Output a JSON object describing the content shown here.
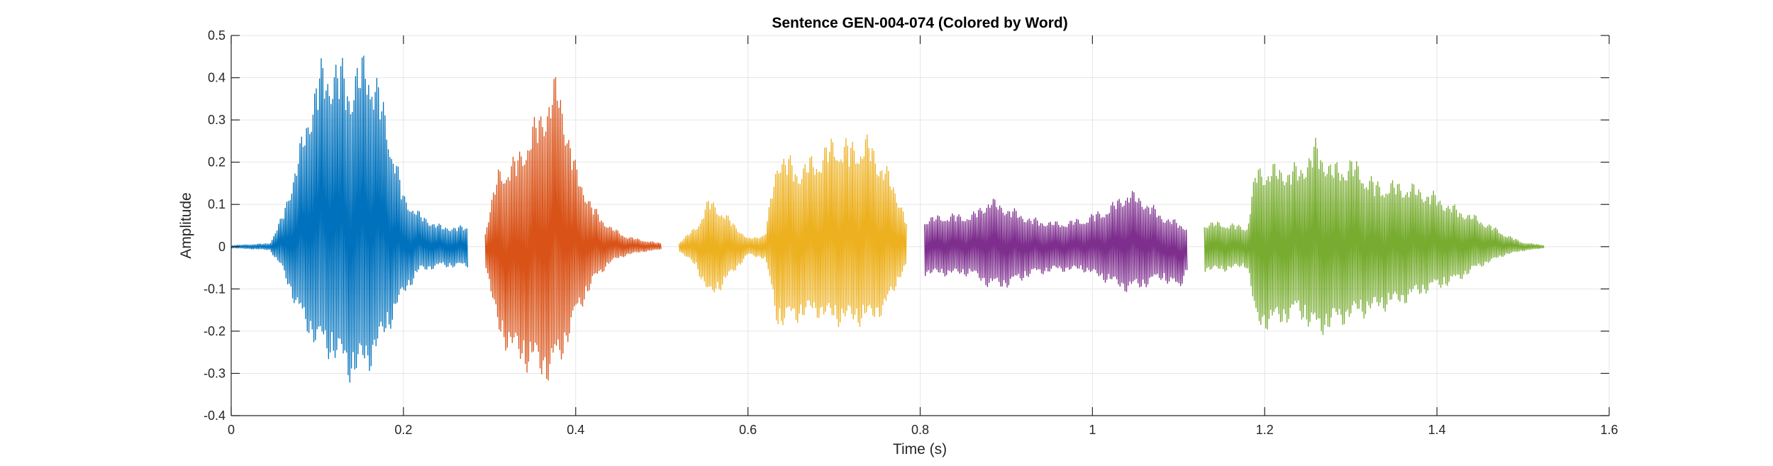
{
  "chart_data": {
    "type": "line",
    "title": "Sentence GEN-004-074 (Colored by Word)",
    "xlabel": "Time (s)",
    "ylabel": "Amplitude",
    "xlim": [
      0,
      1.6
    ],
    "ylim": [
      -0.4,
      0.5
    ],
    "x_ticks": [
      0,
      0.2,
      0.4,
      0.6,
      0.8,
      1,
      1.2,
      1.4,
      1.6
    ],
    "x_tick_labels": [
      "0",
      "0.2",
      "0.4",
      "0.6",
      "0.8",
      "1",
      "1.2",
      "1.4",
      "1.6"
    ],
    "y_ticks": [
      -0.4,
      -0.3,
      -0.2,
      -0.1,
      0,
      0.1,
      0.2,
      0.3,
      0.4,
      0.5
    ],
    "y_tick_labels": [
      "-0.4",
      "-0.3",
      "-0.2",
      "-0.1",
      "0",
      "0.1",
      "0.2",
      "0.3",
      "0.4",
      "0.5"
    ],
    "grid": true,
    "series": [
      {
        "color": "#0072BD",
        "x": [
          0,
          0.045,
          0.06,
          0.08,
          0.1,
          0.12,
          0.14,
          0.16,
          0.18,
          0.2,
          0.22,
          0.245,
          0.275
        ],
        "upper": [
          0.003,
          0.008,
          0.08,
          0.25,
          0.44,
          0.47,
          0.43,
          0.49,
          0.33,
          0.13,
          0.08,
          0.05,
          0.05
        ],
        "lower": [
          -0.003,
          -0.008,
          -0.06,
          -0.18,
          -0.25,
          -0.28,
          -0.33,
          -0.3,
          -0.22,
          -0.12,
          -0.06,
          -0.05,
          -0.05
        ]
      },
      {
        "color": "#D95319",
        "x": [
          0.295,
          0.31,
          0.33,
          0.35,
          0.37,
          0.38,
          0.4,
          0.42,
          0.44,
          0.46,
          0.48,
          0.5
        ],
        "upper": [
          0.04,
          0.19,
          0.22,
          0.3,
          0.39,
          0.42,
          0.2,
          0.1,
          0.05,
          0.025,
          0.015,
          0.008
        ],
        "lower": [
          -0.04,
          -0.22,
          -0.28,
          -0.31,
          -0.33,
          -0.3,
          -0.18,
          -0.09,
          -0.04,
          -0.02,
          -0.012,
          -0.006
        ]
      },
      {
        "color": "#EDB120",
        "x": [
          0.52,
          0.54,
          0.555,
          0.57,
          0.6,
          0.62,
          0.635,
          0.66,
          0.68,
          0.7,
          0.72,
          0.74,
          0.76,
          0.78,
          0.785
        ],
        "upper": [
          0.01,
          0.05,
          0.12,
          0.09,
          0.02,
          0.03,
          0.24,
          0.2,
          0.23,
          0.27,
          0.26,
          0.27,
          0.2,
          0.1,
          0.05
        ],
        "lower": [
          -0.01,
          -0.05,
          -0.13,
          -0.1,
          -0.02,
          -0.03,
          -0.2,
          -0.18,
          -0.17,
          -0.19,
          -0.19,
          -0.19,
          -0.16,
          -0.06,
          -0.05
        ]
      },
      {
        "color": "#7E2F8E",
        "x": [
          0.805,
          0.83,
          0.86,
          0.88,
          0.9,
          0.93,
          0.96,
          0.99,
          1.02,
          1.04,
          1.06,
          1.08,
          1.1,
          1.11
        ],
        "upper": [
          0.07,
          0.08,
          0.08,
          0.12,
          0.1,
          0.07,
          0.06,
          0.07,
          0.1,
          0.14,
          0.12,
          0.08,
          0.06,
          0.05
        ],
        "lower": [
          -0.07,
          -0.07,
          -0.07,
          -0.1,
          -0.1,
          -0.07,
          -0.06,
          -0.06,
          -0.09,
          -0.11,
          -0.1,
          -0.08,
          -0.11,
          -0.06
        ]
      },
      {
        "color": "#77AC30",
        "x": [
          1.13,
          1.15,
          1.18,
          1.19,
          1.21,
          1.24,
          1.26,
          1.28,
          1.3,
          1.33,
          1.36,
          1.39,
          1.42,
          1.45,
          1.48,
          1.5,
          1.525
        ],
        "upper": [
          0.06,
          0.06,
          0.05,
          0.2,
          0.2,
          0.2,
          0.26,
          0.2,
          0.22,
          0.16,
          0.16,
          0.14,
          0.1,
          0.07,
          0.03,
          0.01,
          0.003
        ],
        "lower": [
          -0.06,
          -0.06,
          -0.05,
          -0.2,
          -0.2,
          -0.17,
          -0.22,
          -0.2,
          -0.18,
          -0.16,
          -0.14,
          -0.11,
          -0.09,
          -0.05,
          -0.02,
          -0.01,
          -0.003
        ]
      }
    ]
  }
}
